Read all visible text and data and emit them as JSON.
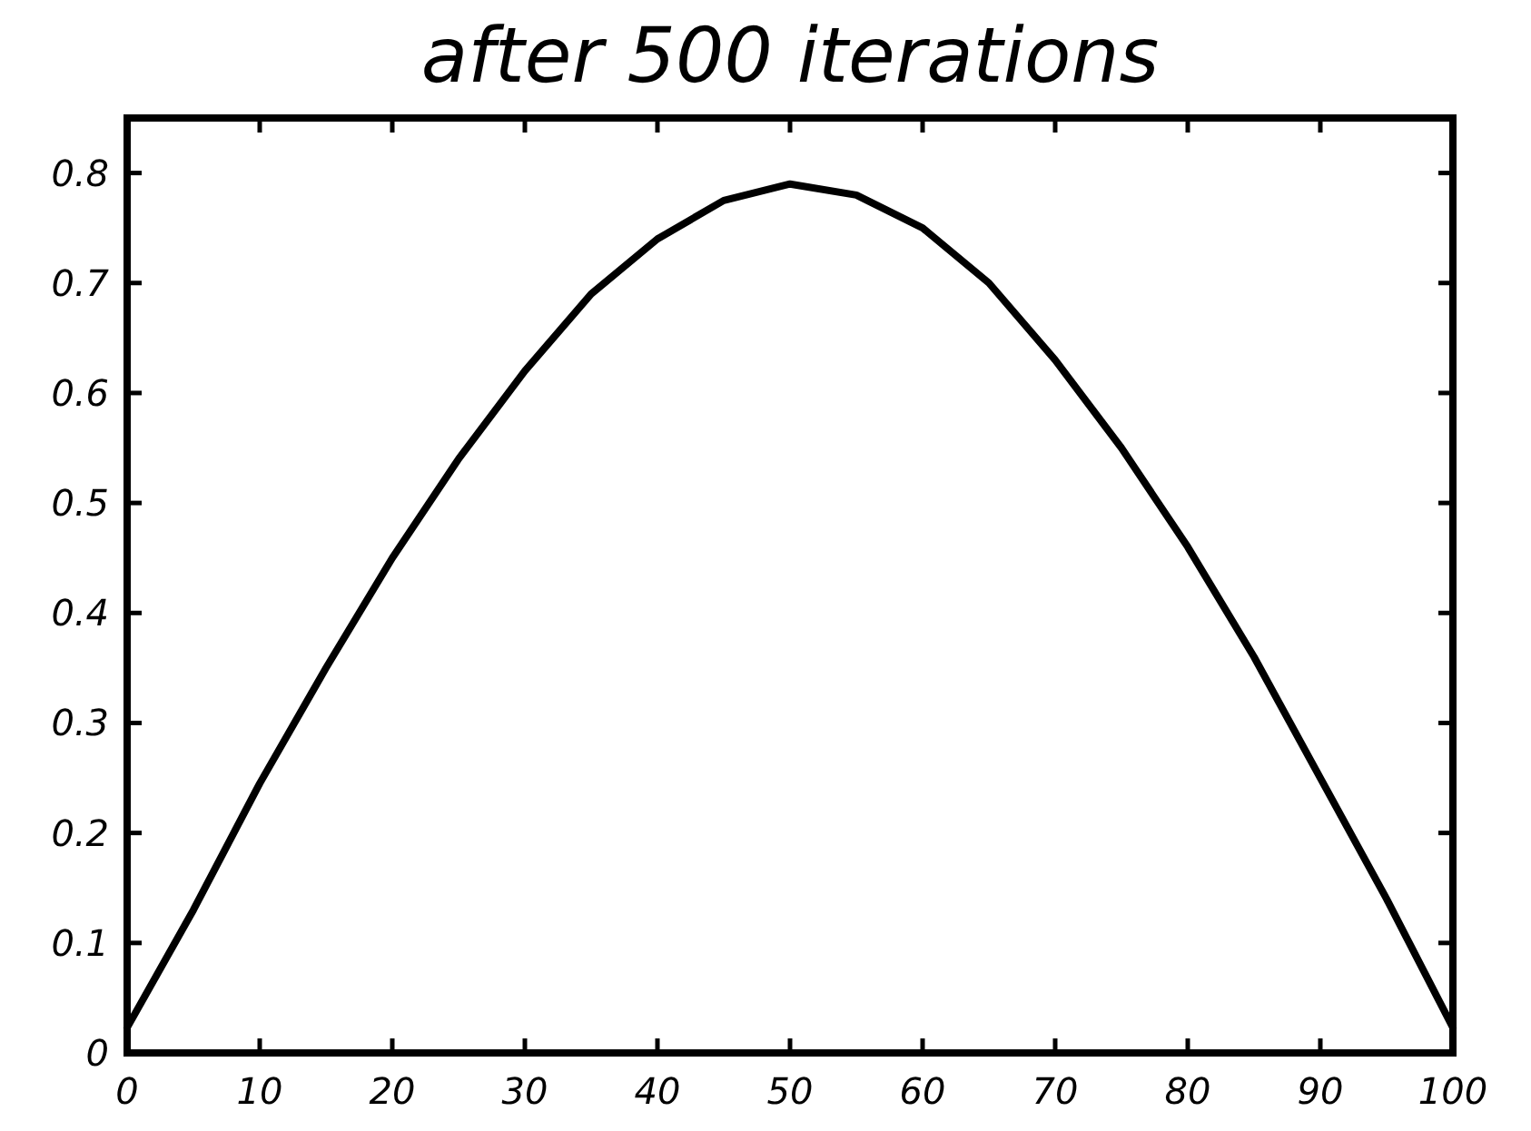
{
  "chart_data": {
    "type": "line",
    "title": "after 500 iterations",
    "x": [
      0,
      5,
      10,
      15,
      20,
      25,
      30,
      35,
      40,
      45,
      50,
      55,
      60,
      65,
      70,
      75,
      80,
      85,
      90,
      95,
      100
    ],
    "series": [
      {
        "color": "#000000",
        "values": [
          0.023,
          0.13,
          0.245,
          0.35,
          0.45,
          0.54,
          0.62,
          0.69,
          0.74,
          0.775,
          0.79,
          0.78,
          0.75,
          0.7,
          0.63,
          0.55,
          0.46,
          0.36,
          0.25,
          0.14,
          0.023
        ]
      }
    ],
    "xlim": [
      0,
      100
    ],
    "xticks": [
      0,
      10,
      20,
      30,
      40,
      50,
      60,
      70,
      80,
      90,
      100
    ],
    "ylim": [
      0,
      0.85
    ],
    "yticks": [
      0,
      0.1,
      0.2,
      0.3,
      0.4,
      0.5,
      0.6,
      0.7,
      0.8
    ],
    "grid": false,
    "marker": "none",
    "line_style": "solid"
  }
}
